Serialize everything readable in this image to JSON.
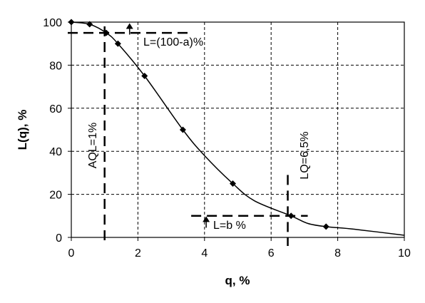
{
  "chart_data": {
    "type": "line",
    "xlabel": "q, %",
    "ylabel": "L(q), %",
    "xlim": [
      0,
      10
    ],
    "ylim": [
      0,
      100
    ],
    "x_ticks": [
      0,
      2,
      4,
      6,
      8,
      10
    ],
    "y_ticks": [
      0,
      20,
      40,
      60,
      80,
      100
    ],
    "grid": "dashed",
    "series": [
      {
        "markers": "diamond",
        "color": "#000000",
        "x": [
          0,
          0.55,
          1.05,
          1.4,
          2.2,
          3.35,
          4.85,
          6.6,
          7.65
        ],
        "y": [
          100,
          99,
          95,
          90,
          75,
          50,
          25,
          10,
          5
        ]
      }
    ],
    "curve": {
      "x": [
        0,
        0.55,
        1.05,
        1.4,
        2.2,
        3.35,
        4.0,
        4.85,
        5.5,
        6.6,
        7.1,
        7.65,
        8.5,
        10
      ],
      "y": [
        100,
        99,
        95,
        90,
        75,
        50,
        38,
        25,
        17,
        10,
        6.5,
        5,
        3.8,
        1
      ]
    },
    "annotations": {
      "aql_label": "AQL=1%",
      "aql_x": 1,
      "lq_label": "LQ=6,5%",
      "lq_x": 6.5,
      "upper_label": "L=(100-a)%",
      "upper_level": 95,
      "lower_label": "L=b %",
      "lower_level": 10
    }
  }
}
